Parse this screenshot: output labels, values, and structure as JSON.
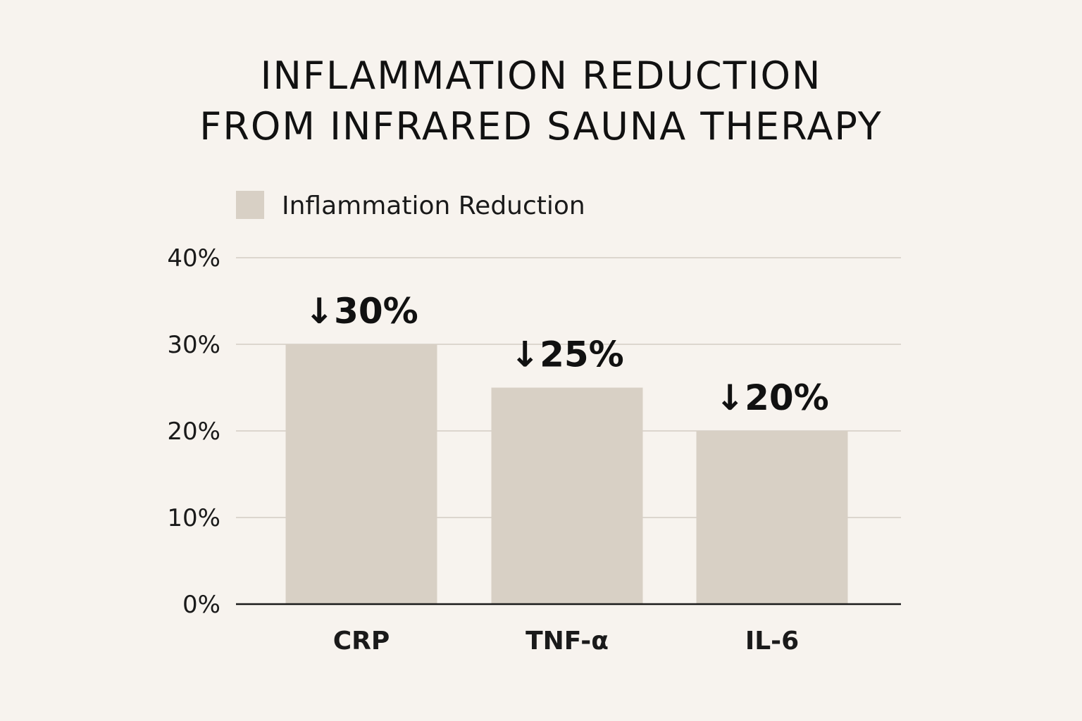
{
  "chart_data": {
    "type": "bar",
    "title_lines": [
      "INFLAMMATION REDUCTION",
      "FROM INFRARED SAUNA THERAPY"
    ],
    "categories": [
      "CRP",
      "TNF-α",
      "IL-6"
    ],
    "series": [
      {
        "name": "Inflammation Reduction",
        "values": [
          30,
          25,
          20
        ],
        "data_labels": [
          "↓30%",
          "↓25%",
          "↓20%"
        ],
        "color": "#d8d0c5"
      }
    ],
    "ylim": [
      0,
      40
    ],
    "yticks": [
      0,
      10,
      20,
      30,
      40
    ],
    "ytick_labels": [
      "0%",
      "10%",
      "20%",
      "30%",
      "40%"
    ],
    "xlabel": "",
    "ylabel": "",
    "grid": true,
    "legend_position": "top-left",
    "colors": {
      "background": "#f7f3ee",
      "grid": "#dcd6ce",
      "axis": "#1a1a1a",
      "text": "#111111"
    }
  }
}
